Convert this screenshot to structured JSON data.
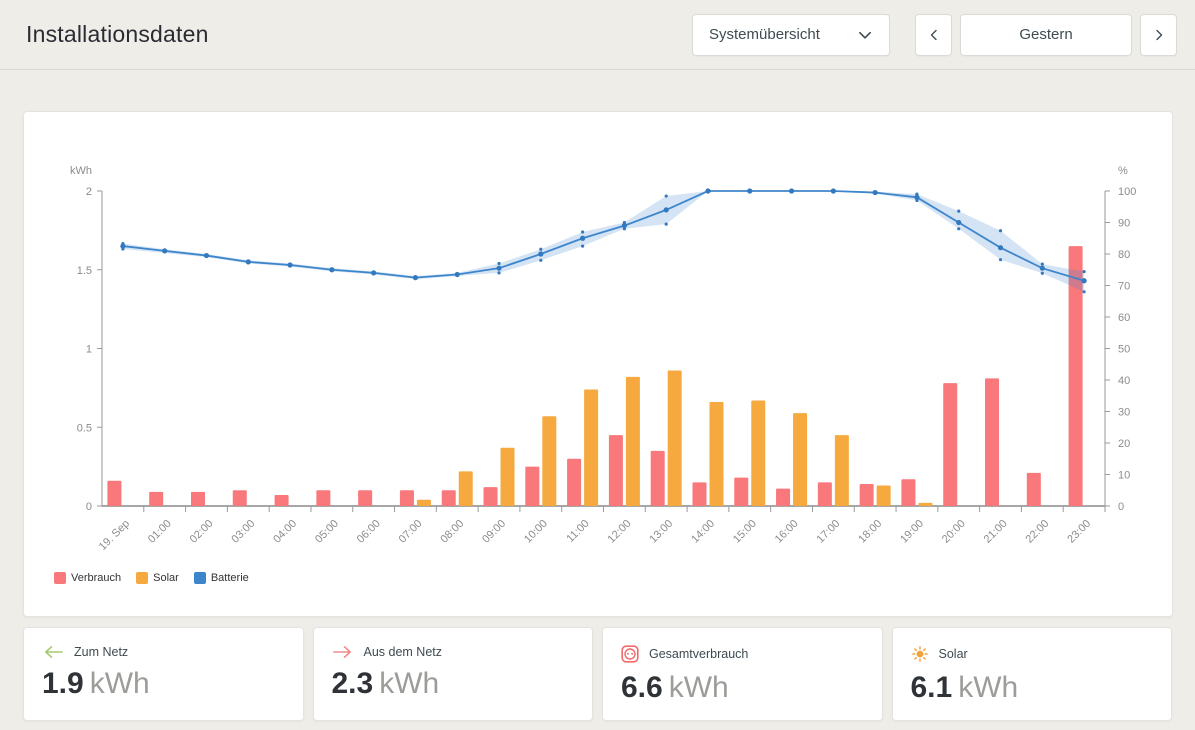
{
  "header": {
    "title": "Installationsdaten",
    "view_selector": "Systemübersicht",
    "date_label": "Gestern"
  },
  "chart_data": {
    "type": "combo-bar-line",
    "categories": [
      "19. Sep",
      "01:00",
      "02:00",
      "03:00",
      "04:00",
      "05:00",
      "06:00",
      "07:00",
      "08:00",
      "09:00",
      "10:00",
      "11:00",
      "12:00",
      "13:00",
      "14:00",
      "15:00",
      "16:00",
      "17:00",
      "18:00",
      "19:00",
      "20:00",
      "21:00",
      "22:00",
      "23:00"
    ],
    "series": [
      {
        "name": "Verbrauch",
        "type": "bar",
        "axis": "left",
        "color": "#f8787b",
        "values": [
          0.16,
          0.09,
          0.09,
          0.1,
          0.07,
          0.1,
          0.1,
          0.1,
          0.1,
          0.12,
          0.25,
          0.3,
          0.45,
          0.35,
          0.15,
          0.18,
          0.11,
          0.15,
          0.14,
          0.17,
          0.78,
          0.81,
          0.21,
          1.65
        ]
      },
      {
        "name": "Solar",
        "type": "bar",
        "axis": "left",
        "color": "#f6a93f",
        "values": [
          0,
          0,
          0,
          0,
          0,
          0,
          0,
          0.04,
          0.22,
          0.37,
          0.57,
          0.74,
          0.82,
          0.86,
          0.66,
          0.67,
          0.59,
          0.45,
          0.13,
          0.02,
          0,
          0,
          0,
          0
        ]
      },
      {
        "name": "Batterie",
        "type": "line",
        "axis": "right",
        "color": "#3e86cc",
        "dot_color": "#3379bf",
        "band_color": "#3e86cc",
        "values": [
          82.5,
          81,
          79.5,
          77.5,
          76.5,
          75,
          74,
          72.5,
          73.5,
          75.5,
          80,
          85,
          89,
          94,
          100,
          100,
          100,
          100,
          99.5,
          98,
          90,
          82,
          75.5,
          71.5
        ],
        "band_upper": [
          83.3,
          81.5,
          80,
          78,
          77,
          75.5,
          74.5,
          73,
          74,
          77,
          81.5,
          87,
          90,
          98.4,
          100,
          100,
          100,
          100,
          99.8,
          99,
          93.6,
          87.4,
          76.8,
          74.4
        ],
        "band_lower": [
          81.6,
          80.3,
          79,
          77,
          76,
          74.5,
          73.5,
          72,
          73,
          74,
          78,
          82.5,
          88,
          89.5,
          100,
          100,
          100,
          100,
          99.2,
          97,
          88,
          78.2,
          73.9,
          68
        ]
      }
    ],
    "left_axis": {
      "label": "kWh",
      "range": [
        0,
        2
      ],
      "ticks": [
        0,
        0.5,
        1,
        1.5,
        2
      ]
    },
    "right_axis": {
      "label": "%",
      "range": [
        0,
        100
      ],
      "ticks": [
        0,
        10,
        20,
        30,
        40,
        50,
        60,
        70,
        80,
        90,
        100
      ]
    },
    "grid": false,
    "legend_position": "bottom-left"
  },
  "cards": [
    {
      "label": "Zum Netz",
      "value": "1.9",
      "unit": "kWh",
      "icon": "arrow-left",
      "icon_color": "#a3cb6c"
    },
    {
      "label": "Aus dem Netz",
      "value": "2.3",
      "unit": "kWh",
      "icon": "arrow-right",
      "icon_color": "#f18a8a"
    },
    {
      "label": "Gesamtverbrauch",
      "value": "6.6",
      "unit": "kWh",
      "icon": "power-socket",
      "icon_color": "#f2696c"
    },
    {
      "label": "Solar",
      "value": "6.1",
      "unit": "kWh",
      "icon": "sun",
      "icon_color": "#f2a43b"
    }
  ]
}
